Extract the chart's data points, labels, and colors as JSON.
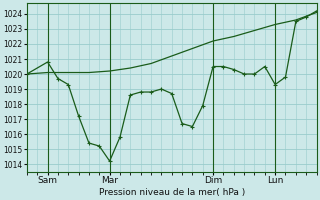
{
  "background_color": "#cce8e8",
  "grid_color": "#99cccc",
  "line_color": "#1a5c1a",
  "xlabel": "Pression niveau de la mer( hPa )",
  "ylim": [
    1013.5,
    1024.7
  ],
  "yticks": [
    1014,
    1015,
    1016,
    1017,
    1018,
    1019,
    1020,
    1021,
    1022,
    1023,
    1024
  ],
  "xlim": [
    0,
    28
  ],
  "xtick_labels": [
    "Sam",
    "Mar",
    "Dim",
    "Lun"
  ],
  "vline_positions": [
    2,
    8,
    18,
    24
  ],
  "line1_x": [
    0,
    2,
    4,
    6,
    8,
    10,
    12,
    14,
    16,
    18,
    20,
    22,
    24,
    26,
    28
  ],
  "line1_y": [
    1020.0,
    1020.1,
    1020.1,
    1020.1,
    1020.2,
    1020.4,
    1020.7,
    1021.2,
    1021.7,
    1022.2,
    1022.5,
    1022.9,
    1023.3,
    1023.6,
    1024.1
  ],
  "line2_x": [
    0,
    2,
    3,
    4,
    5,
    6,
    7,
    8,
    9,
    10,
    11,
    12,
    13,
    14,
    15,
    16,
    17,
    18,
    19,
    20,
    21,
    22,
    23,
    24,
    25,
    26,
    27,
    28
  ],
  "line2_y": [
    1020.0,
    1020.8,
    1019.7,
    1019.3,
    1017.2,
    1015.4,
    1015.2,
    1014.2,
    1015.8,
    1018.6,
    1018.8,
    1018.8,
    1019.0,
    1018.7,
    1016.7,
    1016.5,
    1017.9,
    1020.5,
    1020.5,
    1020.3,
    1020.0,
    1020.0,
    1020.5,
    1019.3,
    1019.8,
    1023.5,
    1023.8,
    1024.2
  ]
}
